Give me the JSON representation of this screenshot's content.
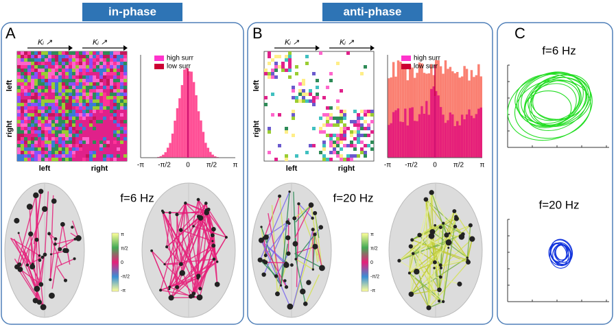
{
  "headers": [
    "in-phase",
    "anti-phase"
  ],
  "panels": [
    {
      "label": "A",
      "matrix": {
        "top_labels": [
          "Kᵢ ↗",
          "Kᵢ ↗"
        ],
        "side_labels": [
          "left",
          "right"
        ],
        "bottom_labels": [
          "left",
          "right"
        ]
      },
      "histogram": {
        "legend": [
          "high surr",
          "low surr"
        ],
        "ticks": [
          "-π",
          "-π/2",
          "0",
          "π/2",
          "π"
        ]
      },
      "frequency": "f=6 Hz",
      "colorbar_ticks": [
        "π",
        "π/2",
        "0",
        "-π/2",
        "-π"
      ]
    },
    {
      "label": "B",
      "matrix": {
        "top_labels": [
          "Kᵢ ↗",
          "Kᵢ ↗"
        ],
        "side_labels": [
          "left",
          "right"
        ],
        "bottom_labels": [
          "left",
          "right"
        ]
      },
      "histogram": {
        "legend": [
          "high surr",
          "low surr"
        ],
        "ticks": [
          "-π",
          "-π/2",
          "0",
          "π/2",
          "π"
        ]
      },
      "frequency": "f=20 Hz",
      "colorbar_ticks": [
        "π",
        "π/2",
        "0",
        "-π/2",
        "-π"
      ]
    },
    {
      "label": "C",
      "plots": [
        {
          "frequency": "f=6 Hz"
        },
        {
          "frequency": "f=20 Hz"
        }
      ]
    }
  ]
}
